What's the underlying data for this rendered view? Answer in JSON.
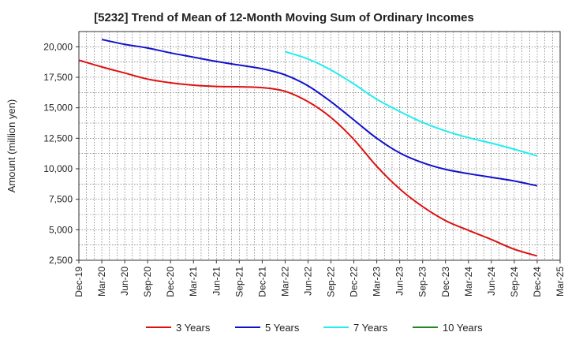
{
  "chart_data": {
    "type": "line",
    "title": "[5232]  Trend of Mean of 12-Month Moving Sum of Ordinary Incomes",
    "xlabel": "",
    "ylabel": "Amount (million yen)",
    "ylim": [
      2500,
      21250
    ],
    "yticks": [
      2500,
      5000,
      7500,
      10000,
      12500,
      15000,
      17500,
      20000
    ],
    "ytick_labels": [
      "2,500",
      "5,000",
      "7,500",
      "10,000",
      "12,500",
      "15,000",
      "17,500",
      "20,000"
    ],
    "categories": [
      "Dec-19",
      "Mar-20",
      "Jun-20",
      "Sep-20",
      "Dec-20",
      "Mar-21",
      "Jun-21",
      "Sep-21",
      "Dec-21",
      "Mar-22",
      "Jun-22",
      "Sep-22",
      "Dec-22",
      "Mar-23",
      "Jun-23",
      "Sep-23",
      "Dec-23",
      "Mar-24",
      "Jun-24",
      "Sep-24",
      "Dec-24",
      "Mar-25"
    ],
    "grid": true,
    "legend_position": "bottom",
    "series": [
      {
        "name": "3 Years",
        "color": "#dd1111",
        "values": [
          18900,
          18350,
          17850,
          17350,
          17050,
          16850,
          16750,
          16720,
          16650,
          16350,
          15500,
          14200,
          12400,
          10200,
          8350,
          6900,
          5750,
          4950,
          4200,
          3400,
          2850,
          null
        ]
      },
      {
        "name": "5 Years",
        "color": "#1111cc",
        "values": [
          null,
          20600,
          20200,
          19900,
          19500,
          19150,
          18800,
          18500,
          18200,
          17700,
          16800,
          15500,
          14000,
          12500,
          11300,
          10500,
          9950,
          9600,
          9300,
          9000,
          8600,
          null
        ]
      },
      {
        "name": "7 Years",
        "color": "#22eeee",
        "values": [
          null,
          null,
          null,
          null,
          null,
          null,
          null,
          null,
          null,
          19600,
          19000,
          18100,
          16950,
          15700,
          14700,
          13800,
          13100,
          12550,
          12100,
          11600,
          11050,
          null
        ]
      },
      {
        "name": "10 Years",
        "color": "#228822",
        "values": [
          null,
          null,
          null,
          null,
          null,
          null,
          null,
          null,
          null,
          null,
          null,
          null,
          null,
          null,
          null,
          null,
          null,
          null,
          null,
          null,
          null,
          null
        ]
      }
    ]
  }
}
